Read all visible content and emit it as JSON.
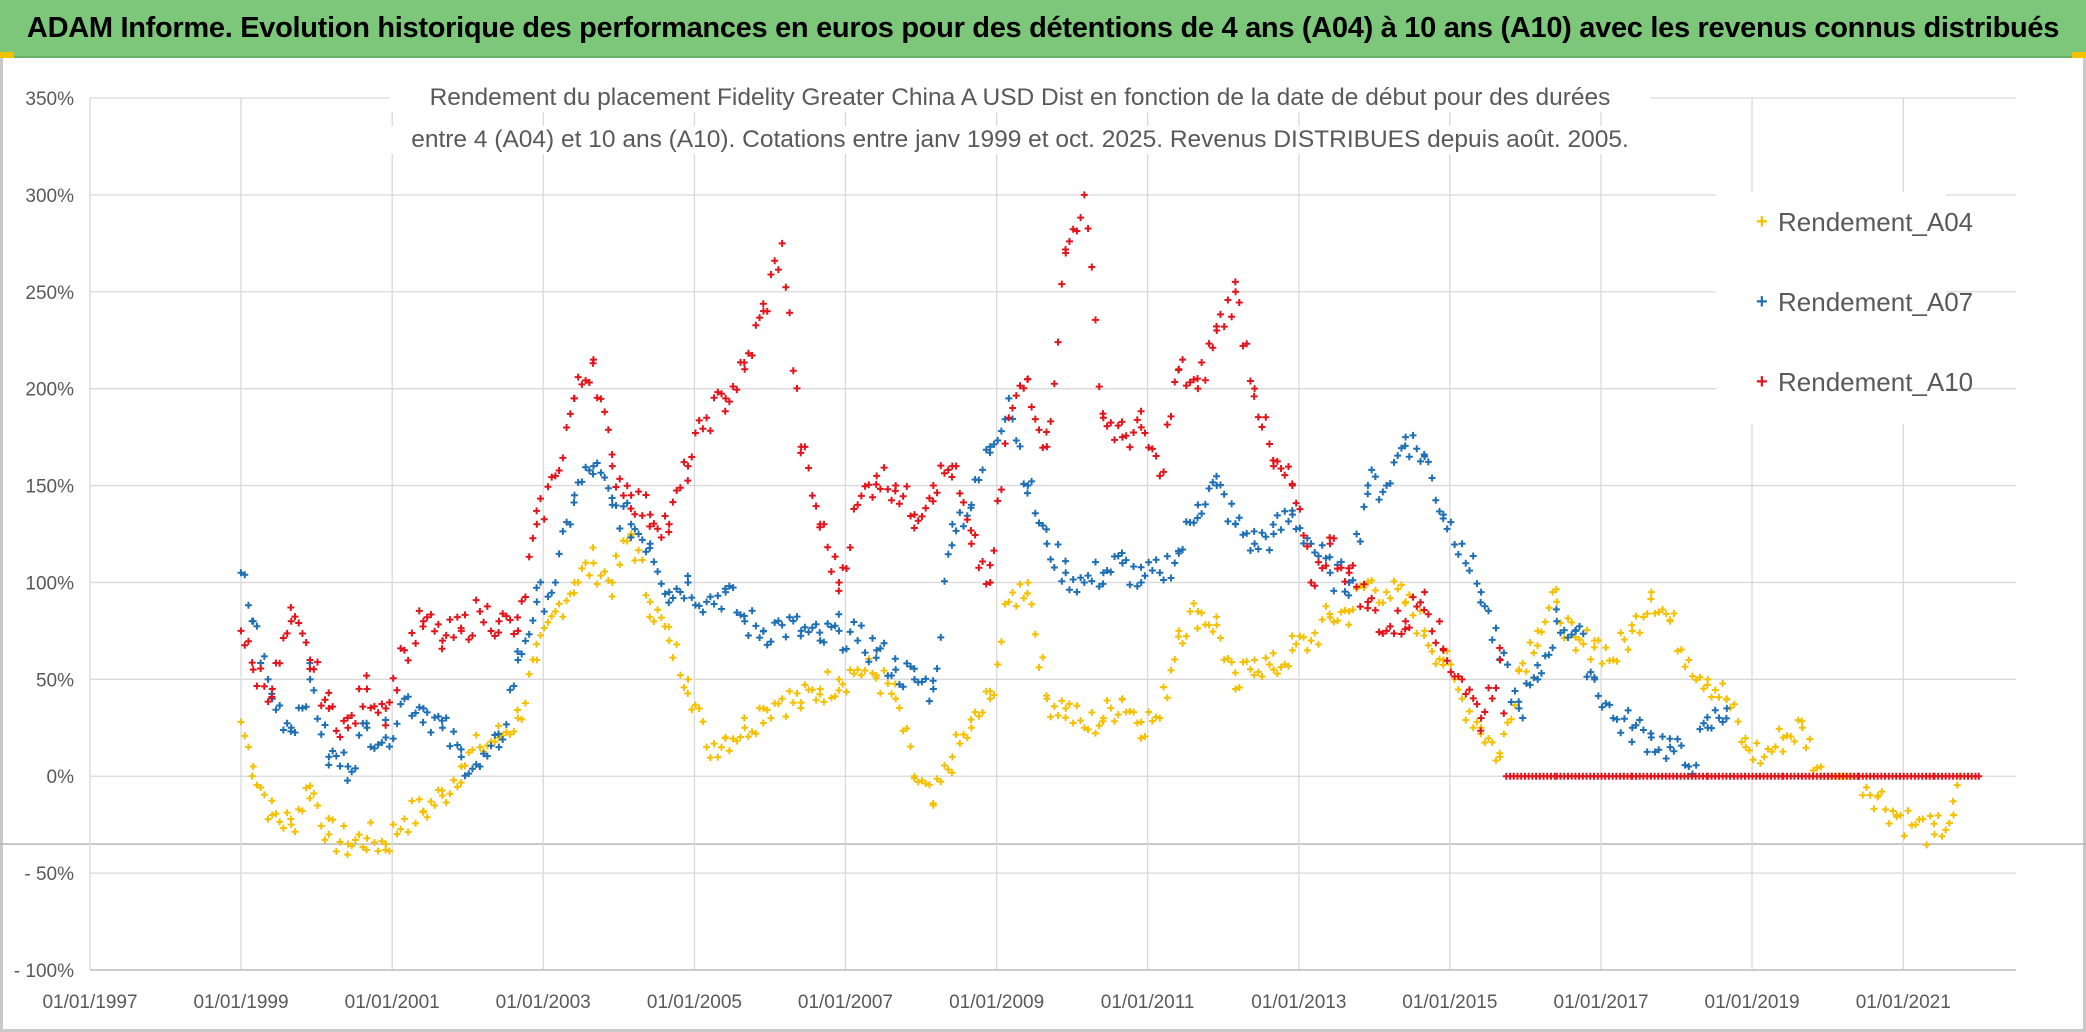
{
  "banner": {
    "text": "ADAM Informe. Evolution historique des performances en euros pour des détentions de 4 ans (A04) à 10 ans (A10) avec les revenus connus distribués"
  },
  "colors": {
    "banner_bg": "#7dc77b",
    "A04": "#f5c000",
    "A07": "#1f6fb4",
    "A10": "#e3141b",
    "grid": "#d9d9d9",
    "axis_text": "#595959"
  },
  "chart_data": {
    "type": "scatter",
    "title_line1": "Rendement du placement Fidelity Greater China A USD Dist en fonction de la date de début pour des durées",
    "title_line2": "entre 4 (A04) et 10 ans (A10). Cotations entre janv 1999 et oct. 2025. Revenus DISTRIBUES depuis août. 2005.",
    "xlabel": "",
    "ylabel": "",
    "ylim": [
      -100,
      350
    ],
    "xlim": [
      "1997-01-01",
      "2022-06-30"
    ],
    "y_ticks": [
      "350%",
      "300%",
      "250%",
      "200%",
      "150%",
      "100%",
      "50%",
      "0%",
      "- 50%",
      "- 100%"
    ],
    "x_ticks": [
      "01/01/1997",
      "01/01/1999",
      "01/01/2001",
      "01/01/2003",
      "01/01/2005",
      "01/01/2007",
      "01/01/2009",
      "01/01/2011",
      "01/01/2013",
      "01/01/2015",
      "01/01/2017",
      "01/01/2019",
      "01/01/2021"
    ],
    "grid": true,
    "legend_position": "right",
    "series": [
      {
        "name": "Rendement_A04",
        "x": [
          "1999-01-01",
          "1999-03-01",
          "1999-06-01",
          "1999-09-01",
          "1999-12-01",
          "2000-03-01",
          "2000-06-01",
          "2000-09-01",
          "2000-12-01",
          "2001-03-01",
          "2001-06-01",
          "2001-09-01",
          "2001-12-01",
          "2002-03-01",
          "2002-06-01",
          "2002-09-01",
          "2002-12-01",
          "2003-03-01",
          "2003-06-01",
          "2003-09-01",
          "2003-12-01",
          "2004-03-01",
          "2004-06-01",
          "2004-09-01",
          "2004-12-01",
          "2005-03-01",
          "2005-06-01",
          "2005-09-01",
          "2005-12-01",
          "2006-03-01",
          "2006-06-01",
          "2006-09-01",
          "2006-12-01",
          "2007-03-01",
          "2007-06-01",
          "2007-09-01",
          "2007-12-01",
          "2008-03-01",
          "2008-06-01",
          "2008-09-01",
          "2008-12-01",
          "2009-03-01",
          "2009-06-01",
          "2009-09-01",
          "2009-12-01",
          "2010-03-01",
          "2010-06-01",
          "2010-09-01",
          "2010-12-01",
          "2011-03-01",
          "2011-06-01",
          "2011-09-01",
          "2011-12-01",
          "2012-03-01",
          "2012-06-01",
          "2012-09-01",
          "2012-12-01",
          "2013-03-01",
          "2013-06-01",
          "2013-09-01",
          "2013-12-01",
          "2014-03-01",
          "2014-06-01",
          "2014-09-01",
          "2014-12-01",
          "2015-03-01",
          "2015-06-01",
          "2015-09-01",
          "2015-12-01",
          "2016-03-01",
          "2016-06-01",
          "2016-09-01",
          "2016-12-01",
          "2017-03-01",
          "2017-06-01",
          "2017-09-01",
          "2017-12-01",
          "2018-03-01",
          "2018-06-01",
          "2018-09-01",
          "2018-12-01",
          "2019-03-01",
          "2019-06-01",
          "2019-09-01",
          "2019-12-01",
          "2020-03-01",
          "2020-06-01",
          "2020-09-01",
          "2020-12-01",
          "2021-03-01",
          "2021-06-01",
          "2021-09-01",
          "2021-10-01"
        ],
        "y": [
          28,
          5,
          -20,
          -25,
          -5,
          -30,
          -35,
          -32,
          -35,
          -22,
          -18,
          -10,
          5,
          15,
          20,
          30,
          60,
          85,
          100,
          110,
          100,
          125,
          90,
          70,
          50,
          15,
          20,
          25,
          35,
          40,
          38,
          45,
          50,
          55,
          52,
          40,
          0,
          -15,
          10,
          25,
          40,
          90,
          100,
          40,
          35,
          25,
          30,
          40,
          28,
          30,
          75,
          85,
          78,
          45,
          60,
          55,
          65,
          70,
          82,
          85,
          100,
          95,
          90,
          75,
          60,
          40,
          25,
          10,
          55,
          75,
          90,
          65,
          70,
          60,
          75,
          95,
          80,
          60,
          50,
          40,
          15,
          10,
          20,
          25,
          0,
          0,
          0,
          -10,
          -20,
          -25,
          -30,
          -20,
          0
        ]
      },
      {
        "name": "Rendement_A07",
        "x": [
          "1999-01-01",
          "1999-03-01",
          "1999-06-01",
          "1999-09-01",
          "1999-12-01",
          "2000-03-01",
          "2000-06-01",
          "2000-09-01",
          "2000-12-01",
          "2001-03-01",
          "2001-06-01",
          "2001-09-01",
          "2001-12-01",
          "2002-03-01",
          "2002-06-01",
          "2002-09-01",
          "2002-12-01",
          "2003-03-01",
          "2003-06-01",
          "2003-09-01",
          "2003-12-01",
          "2004-03-01",
          "2004-06-01",
          "2004-09-01",
          "2004-12-01",
          "2005-03-01",
          "2005-06-01",
          "2005-09-01",
          "2005-12-01",
          "2006-03-01",
          "2006-06-01",
          "2006-09-01",
          "2006-12-01",
          "2007-03-01",
          "2007-06-01",
          "2007-09-01",
          "2007-12-01",
          "2008-03-01",
          "2008-06-01",
          "2008-09-01",
          "2008-12-01",
          "2009-03-01",
          "2009-06-01",
          "2009-09-01",
          "2009-12-01",
          "2010-03-01",
          "2010-06-01",
          "2010-09-01",
          "2010-12-01",
          "2011-03-01",
          "2011-06-01",
          "2011-09-01",
          "2011-12-01",
          "2012-03-01",
          "2012-06-01",
          "2012-09-01",
          "2012-12-01",
          "2013-03-01",
          "2013-06-01",
          "2013-09-01",
          "2013-12-01",
          "2014-03-01",
          "2014-06-01",
          "2014-09-01",
          "2014-12-01",
          "2015-03-01",
          "2015-06-01",
          "2015-09-01",
          "2015-12-01",
          "2016-03-01",
          "2016-06-01",
          "2016-09-01",
          "2016-12-01",
          "2017-03-01",
          "2017-06-01",
          "2017-09-01",
          "2017-12-01",
          "2018-03-01",
          "2018-06-01",
          "2018-09-01"
        ],
        "y": [
          105,
          80,
          40,
          25,
          50,
          10,
          5,
          25,
          20,
          40,
          35,
          25,
          10,
          5,
          15,
          60,
          90,
          100,
          145,
          160,
          140,
          130,
          120,
          95,
          100,
          90,
          95,
          80,
          75,
          78,
          75,
          70,
          75,
          70,
          65,
          55,
          50,
          45,
          130,
          140,
          170,
          195,
          150,
          120,
          105,
          100,
          105,
          110,
          100,
          105,
          115,
          140,
          150,
          130,
          120,
          125,
          135,
          120,
          105,
          100,
          150,
          150,
          175,
          165,
          135,
          120,
          95,
          60,
          35,
          50,
          80,
          75,
          50,
          30,
          25,
          20,
          15,
          5,
          25,
          35
        ]
      },
      {
        "name": "Rendement_A10",
        "x": [
          "1999-01-01",
          "1999-03-01",
          "1999-06-01",
          "1999-09-01",
          "1999-12-01",
          "2000-03-01",
          "2000-06-01",
          "2000-09-01",
          "2000-12-01",
          "2001-03-01",
          "2001-06-01",
          "2001-09-01",
          "2001-12-01",
          "2002-03-01",
          "2002-06-01",
          "2002-09-01",
          "2002-12-01",
          "2003-03-01",
          "2003-06-01",
          "2003-09-01",
          "2003-12-01",
          "2004-03-01",
          "2004-06-01",
          "2004-09-01",
          "2004-12-01",
          "2005-03-01",
          "2005-06-01",
          "2005-09-01",
          "2005-12-01",
          "2006-03-01",
          "2006-06-01",
          "2006-09-01",
          "2006-12-01",
          "2007-03-01",
          "2007-06-01",
          "2007-09-01",
          "2007-12-01",
          "2008-03-01",
          "2008-06-01",
          "2008-09-01",
          "2008-12-01",
          "2009-03-01",
          "2009-06-01",
          "2009-09-01",
          "2009-12-01",
          "2010-03-01",
          "2010-06-01",
          "2010-09-01",
          "2010-12-01",
          "2011-03-01",
          "2011-06-01",
          "2011-09-01",
          "2011-12-01",
          "2012-03-01",
          "2012-06-01",
          "2012-09-01",
          "2012-12-01",
          "2013-03-01",
          "2013-06-01",
          "2013-09-01",
          "2013-12-01",
          "2014-03-01",
          "2014-06-01",
          "2014-09-01",
          "2014-12-01",
          "2015-03-01",
          "2015-06-01",
          "2015-09-01",
          "2015-10-01",
          "2016-06-01",
          "2017-06-01",
          "2018-06-01",
          "2019-06-01",
          "2020-06-01",
          "2021-06-01",
          "2022-01-01"
        ],
        "y": [
          75,
          55,
          45,
          80,
          60,
          35,
          25,
          45,
          35,
          65,
          80,
          70,
          75,
          85,
          80,
          75,
          130,
          155,
          195,
          215,
          160,
          145,
          135,
          130,
          160,
          185,
          195,
          210,
          240,
          275,
          170,
          130,
          100,
          140,
          155,
          150,
          135,
          150,
          160,
          120,
          100,
          185,
          205,
          170,
          270,
          300,
          185,
          175,
          180,
          155,
          210,
          200,
          230,
          250,
          200,
          160,
          150,
          100,
          120,
          105,
          90,
          75,
          80,
          95,
          65,
          50,
          30,
          60,
          0,
          0,
          0,
          0,
          0,
          0,
          0,
          0
        ]
      }
    ]
  },
  "legend": [
    {
      "label": "Rendement_A04",
      "color": "#f5c000"
    },
    {
      "label": "Rendement_A07",
      "color": "#1f6fb4"
    },
    {
      "label": "Rendement_A10",
      "color": "#e3141b"
    }
  ]
}
